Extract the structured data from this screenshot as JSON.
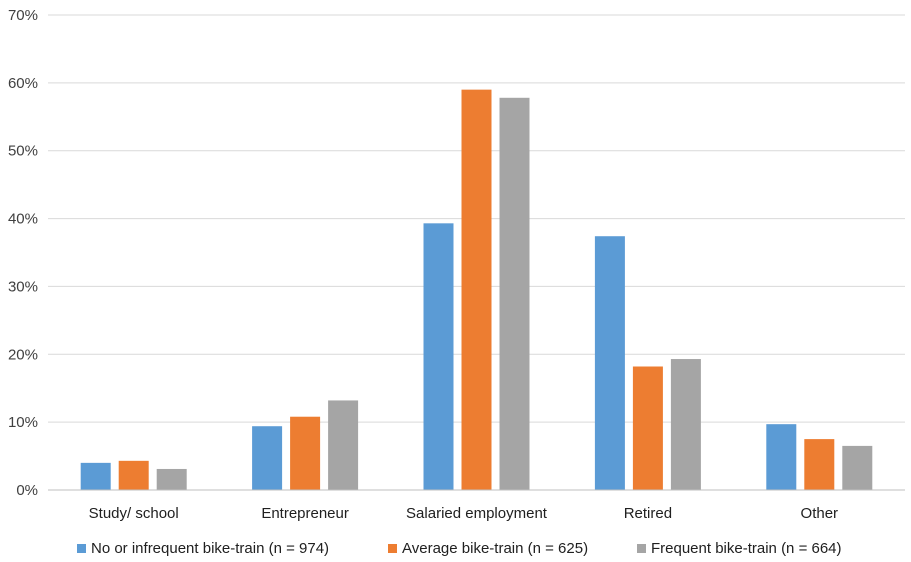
{
  "chart_data": {
    "type": "bar",
    "title": "",
    "xlabel": "",
    "ylabel": "",
    "ylim": [
      0,
      70
    ],
    "y_ticks": [
      "0%",
      "10%",
      "20%",
      "30%",
      "40%",
      "50%",
      "60%",
      "70%"
    ],
    "grid": true,
    "legend_position": "bottom",
    "categories": [
      "Study/ school",
      "Entrepreneur",
      "Salaried employment",
      "Retired",
      "Other"
    ],
    "series": [
      {
        "name": "No or infrequent bike-train (n = 974)",
        "color": "#5b9bd5",
        "values": [
          4.0,
          9.4,
          39.3,
          37.4,
          9.7
        ]
      },
      {
        "name": "Average bike-train (n = 625)",
        "color": "#ed7d31",
        "values": [
          4.3,
          10.8,
          59.0,
          18.2,
          7.5
        ]
      },
      {
        "name": "Frequent bike-train (n = 664)",
        "color": "#a5a5a5",
        "values": [
          3.1,
          13.2,
          57.8,
          19.3,
          6.5
        ]
      }
    ]
  }
}
